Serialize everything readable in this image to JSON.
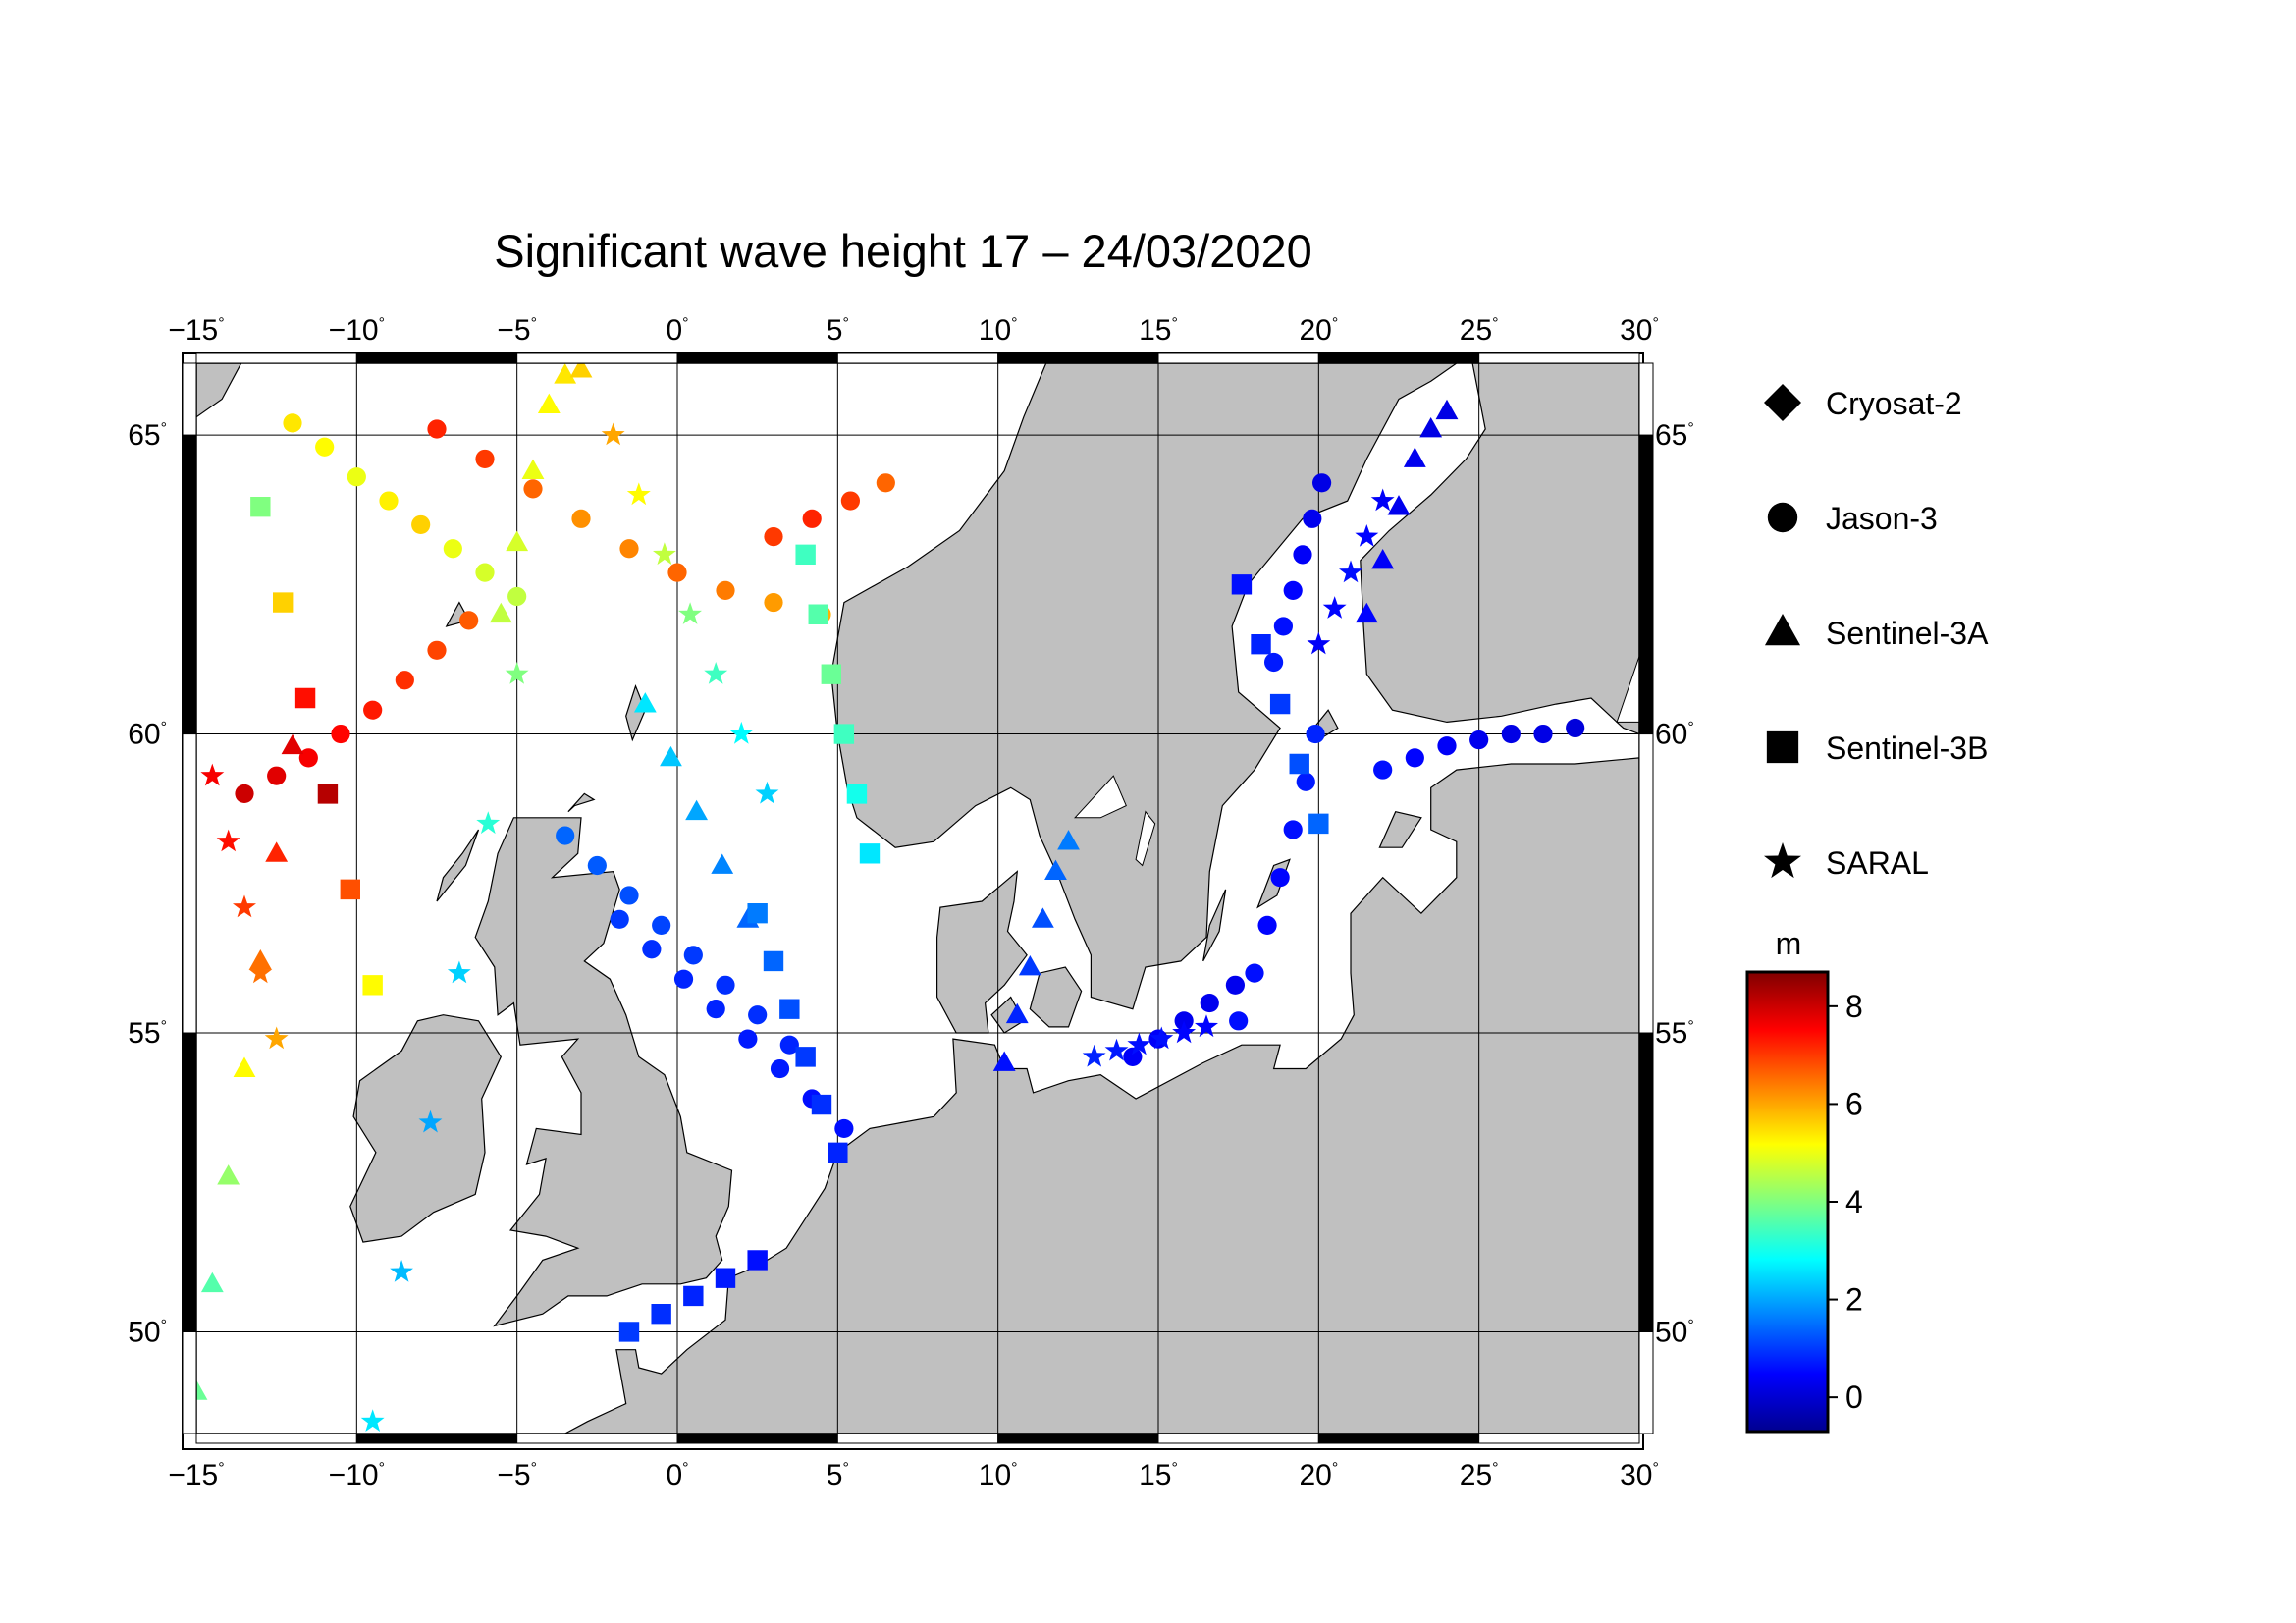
{
  "title": "Significant wave height 17 – 24/03/2020",
  "map": {
    "lon_range": [
      -15,
      30
    ],
    "lat_range": [
      48.3,
      66.2
    ],
    "lon_ticks": [
      {
        "value": -15,
        "label": "−15"
      },
      {
        "value": -10,
        "label": "−10"
      },
      {
        "value": -5,
        "label": "−5"
      },
      {
        "value": 0,
        "label": "0"
      },
      {
        "value": 5,
        "label": "5"
      },
      {
        "value": 10,
        "label": "10"
      },
      {
        "value": 15,
        "label": "15"
      },
      {
        "value": 20,
        "label": "20"
      },
      {
        "value": 25,
        "label": "25"
      },
      {
        "value": 30,
        "label": "30"
      }
    ],
    "lat_ticks": [
      {
        "value": 50,
        "label": "50"
      },
      {
        "value": 55,
        "label": "55"
      },
      {
        "value": 60,
        "label": "60"
      },
      {
        "value": 65,
        "label": "65"
      }
    ],
    "degree_symbol": "°",
    "grid": true,
    "colors": {
      "land": "#c0c0c0",
      "sea": "#ffffff",
      "coast": "#000000"
    }
  },
  "legend": {
    "placement": "right",
    "items": [
      {
        "label": "Cryosat-2",
        "symbol": "diamond"
      },
      {
        "label": "Jason-3",
        "symbol": "circle"
      },
      {
        "label": "Sentinel-3A",
        "symbol": "triangle"
      },
      {
        "label": "Sentinel-3B",
        "symbol": "square"
      },
      {
        "label": "SARAL",
        "symbol": "star"
      }
    ]
  },
  "colorbar": {
    "unit": "m",
    "range": [
      -0.7,
      8.7
    ],
    "ticks": [
      0,
      2,
      4,
      6,
      8
    ],
    "colors": [
      "#00008f",
      "#0000ff",
      "#0080ff",
      "#00ffff",
      "#80ff80",
      "#ffff00",
      "#ff8000",
      "#ff0000",
      "#800000"
    ]
  },
  "chart_data": {
    "type": "scatter",
    "title": "Significant wave height 17 – 24/03/2020",
    "xlabel": "",
    "ylabel": "",
    "x_unit": "degrees longitude",
    "y_unit": "degrees latitude",
    "color_unit": "m",
    "series": [
      {
        "name": "Jason-3",
        "marker": "circle",
        "tracks": [
          {
            "lon": [
              -7.5,
              -6.0,
              -4.5,
              -3.0,
              -1.5,
              0.0,
              1.5,
              3.0,
              4.5
            ],
            "lat": [
              65.1,
              64.6,
              64.1,
              63.6,
              63.1,
              62.7,
              62.4,
              62.2,
              62.0
            ],
            "hs": [
              7.2,
              7.0,
              6.6,
              6.2,
              6.3,
              6.6,
              6.4,
              6.1,
              5.9
            ]
          },
          {
            "lon": [
              3.0,
              4.2,
              5.4,
              6.5
            ],
            "lat": [
              63.3,
              63.6,
              63.9,
              64.2
            ],
            "hs": [
              7.0,
              7.2,
              7.0,
              6.6
            ]
          },
          {
            "lon": [
              -13.5,
              -12.5,
              -11.5,
              -10.5,
              -9.5,
              -8.5,
              -7.5,
              -6.5
            ],
            "lat": [
              59.0,
              59.3,
              59.6,
              60.0,
              60.4,
              60.9,
              61.4,
              61.9
            ],
            "hs": [
              8.0,
              7.8,
              7.6,
              7.5,
              7.3,
              7.1,
              6.9,
              6.7
            ]
          },
          {
            "lon": [
              -12.0,
              -11.0,
              -10.0,
              -9.0,
              -8.0,
              -7.0,
              -6.0,
              -5.0
            ],
            "lat": [
              65.2,
              64.8,
              64.3,
              63.9,
              63.5,
              63.1,
              62.7,
              62.3
            ],
            "hs": [
              5.4,
              5.2,
              5.0,
              5.3,
              5.6,
              5.0,
              4.8,
              4.6
            ]
          },
          {
            "lon": [
              -1.8,
              -0.8,
              0.2,
              1.2,
              2.2,
              3.2,
              4.2,
              5.2
            ],
            "lat": [
              56.9,
              56.4,
              55.9,
              55.4,
              54.9,
              54.4,
              53.9,
              53.4
            ],
            "hs": [
              1.0,
              0.9,
              0.8,
              0.8,
              0.7,
              0.7,
              0.6,
              0.6
            ]
          },
          {
            "lon": [
              -3.5,
              -2.5,
              -1.5,
              -0.5,
              0.5,
              1.5,
              2.5,
              3.5
            ],
            "lat": [
              58.3,
              57.8,
              57.3,
              56.8,
              56.3,
              55.8,
              55.3,
              54.8
            ],
            "hs": [
              1.4,
              1.3,
              1.2,
              1.1,
              1.0,
              0.9,
              0.9,
              0.8
            ]
          },
          {
            "lon": [
              17.5,
              18.0,
              18.4,
              18.8,
              19.2,
              19.6,
              19.9
            ],
            "lat": [
              55.2,
              56.0,
              56.8,
              57.6,
              58.4,
              59.2,
              60.0
            ],
            "hs": [
              0.6,
              0.6,
              0.5,
              0.5,
              0.6,
              0.7,
              0.8
            ]
          },
          {
            "lon": [
              18.6,
              18.9,
              19.2,
              19.5,
              19.8,
              20.1
            ],
            "lat": [
              61.2,
              61.8,
              62.4,
              63.0,
              63.6,
              64.2
            ],
            "hs": [
              0.7,
              0.6,
              0.5,
              0.4,
              0.3,
              0.2
            ]
          },
          {
            "lon": [
              22.0,
              23.0,
              24.0,
              25.0,
              26.0,
              27.0,
              28.0
            ],
            "lat": [
              59.4,
              59.6,
              59.8,
              59.9,
              60.0,
              60.0,
              60.1
            ],
            "hs": [
              0.6,
              0.5,
              0.4,
              0.3,
              0.2,
              0.2,
              0.1
            ]
          },
          {
            "lon": [
              14.2,
              15.0,
              15.8,
              16.6,
              17.4
            ],
            "lat": [
              54.6,
              54.9,
              55.2,
              55.5,
              55.8
            ],
            "hs": [
              0.4,
              0.4,
              0.3,
              0.3,
              0.3
            ]
          }
        ]
      },
      {
        "name": "Sentinel-3A",
        "marker": "triangle",
        "tracks": [
          {
            "lon": [
              -15.0,
              -14.5,
              -14.0,
              -13.5,
              -13.0,
              -12.5,
              -12.0
            ],
            "lat": [
              49.0,
              50.8,
              52.6,
              54.4,
              56.2,
              58.0,
              59.8
            ],
            "hs": [
              3.8,
              3.6,
              4.2,
              5.2,
              6.5,
              7.2,
              7.8
            ]
          },
          {
            "lon": [
              -5.5,
              -5.0,
              -4.5,
              -4.0,
              -3.5,
              -3.0
            ],
            "lat": [
              62.0,
              63.2,
              64.4,
              65.5,
              66.0,
              66.1
            ],
            "hs": [
              4.6,
              4.8,
              5.0,
              5.2,
              5.4,
              5.6
            ]
          },
          {
            "lon": [
              10.2,
              10.6,
              11.0,
              11.4,
              11.8,
              12.2
            ],
            "lat": [
              54.5,
              55.3,
              56.1,
              56.9,
              57.7,
              58.2
            ],
            "hs": [
              0.6,
              0.8,
              1.0,
              1.2,
              1.4,
              1.6
            ]
          },
          {
            "lon": [
              21.5,
              22.0,
              22.5,
              23.0,
              23.5,
              24.0
            ],
            "lat": [
              62.0,
              62.9,
              63.8,
              64.6,
              65.1,
              65.4
            ],
            "hs": [
              0.5,
              0.4,
              0.3,
              0.3,
              0.2,
              0.2
            ]
          },
          {
            "lon": [
              -1.0,
              -0.2,
              0.6,
              1.4,
              2.2
            ],
            "lat": [
              60.5,
              59.6,
              58.7,
              57.8,
              56.9
            ],
            "hs": [
              2.6,
              2.3,
              2.0,
              1.7,
              1.4
            ]
          }
        ]
      },
      {
        "name": "Sentinel-3B",
        "marker": "square",
        "tracks": [
          {
            "lon": [
              -13.0,
              -12.3,
              -11.6,
              -10.9,
              -10.2,
              -9.5
            ],
            "lat": [
              63.8,
              62.2,
              60.6,
              59.0,
              57.4,
              55.8
            ],
            "hs": [
              4.0,
              5.6,
              7.4,
              8.2,
              6.8,
              5.2
            ]
          },
          {
            "lon": [
              4.0,
              4.4,
              4.8,
              5.2,
              5.6,
              6.0
            ],
            "lat": [
              63.0,
              62.0,
              61.0,
              60.0,
              59.0,
              58.0
            ],
            "hs": [
              3.4,
              3.6,
              3.8,
              3.4,
              3.0,
              2.6
            ]
          },
          {
            "lon": [
              2.5,
              3.0,
              3.5,
              4.0,
              4.5,
              5.0
            ],
            "lat": [
              57.0,
              56.2,
              55.4,
              54.6,
              53.8,
              53.0
            ],
            "hs": [
              1.6,
              1.4,
              1.2,
              1.0,
              0.9,
              0.8
            ]
          },
          {
            "lon": [
              -1.5,
              -0.5,
              0.5,
              1.5,
              2.5
            ],
            "lat": [
              50.0,
              50.3,
              50.6,
              50.9,
              51.2
            ],
            "hs": [
              1.0,
              0.9,
              0.8,
              0.7,
              0.6
            ]
          },
          {
            "lon": [
              17.6,
              18.2,
              18.8,
              19.4,
              20.0
            ],
            "lat": [
              62.5,
              61.5,
              60.5,
              59.5,
              58.5
            ],
            "hs": [
              0.6,
              0.8,
              1.0,
              1.2,
              1.4
            ]
          }
        ]
      },
      {
        "name": "SARAL",
        "marker": "star",
        "tracks": [
          {
            "lon": [
              -9.5,
              -8.6,
              -7.7,
              -6.8,
              -5.9,
              -5.0
            ],
            "lat": [
              48.5,
              51.0,
              53.5,
              56.0,
              58.5,
              61.0
            ],
            "hs": [
              2.6,
              2.2,
              2.0,
              2.4,
              3.2,
              4.0
            ]
          },
          {
            "lon": [
              -14.5,
              -14.0,
              -13.5,
              -13.0,
              -12.5
            ],
            "lat": [
              59.3,
              58.2,
              57.1,
              56.0,
              54.9
            ],
            "hs": [
              7.6,
              7.4,
              7.0,
              6.5,
              6.0
            ]
          },
          {
            "lon": [
              -2.0,
              -1.2,
              -0.4,
              0.4,
              1.2,
              2.0,
              2.8
            ],
            "lat": [
              65.0,
              64.0,
              63.0,
              62.0,
              61.0,
              60.0,
              59.0
            ],
            "hs": [
              6.0,
              5.2,
              4.6,
              4.0,
              3.4,
              2.8,
              2.4
            ]
          },
          {
            "lon": [
              13.0,
              13.7,
              14.4,
              15.1,
              15.8,
              16.5
            ],
            "lat": [
              54.6,
              54.7,
              54.8,
              54.9,
              55.0,
              55.1
            ],
            "hs": [
              0.8,
              0.7,
              0.6,
              0.6,
              0.5,
              0.5
            ]
          },
          {
            "lon": [
              20.0,
              20.5,
              21.0,
              21.5,
              22.0
            ],
            "lat": [
              61.5,
              62.1,
              62.7,
              63.3,
              63.9
            ],
            "hs": [
              0.4,
              0.5,
              0.6,
              0.5,
              0.4
            ]
          }
        ]
      }
    ]
  }
}
